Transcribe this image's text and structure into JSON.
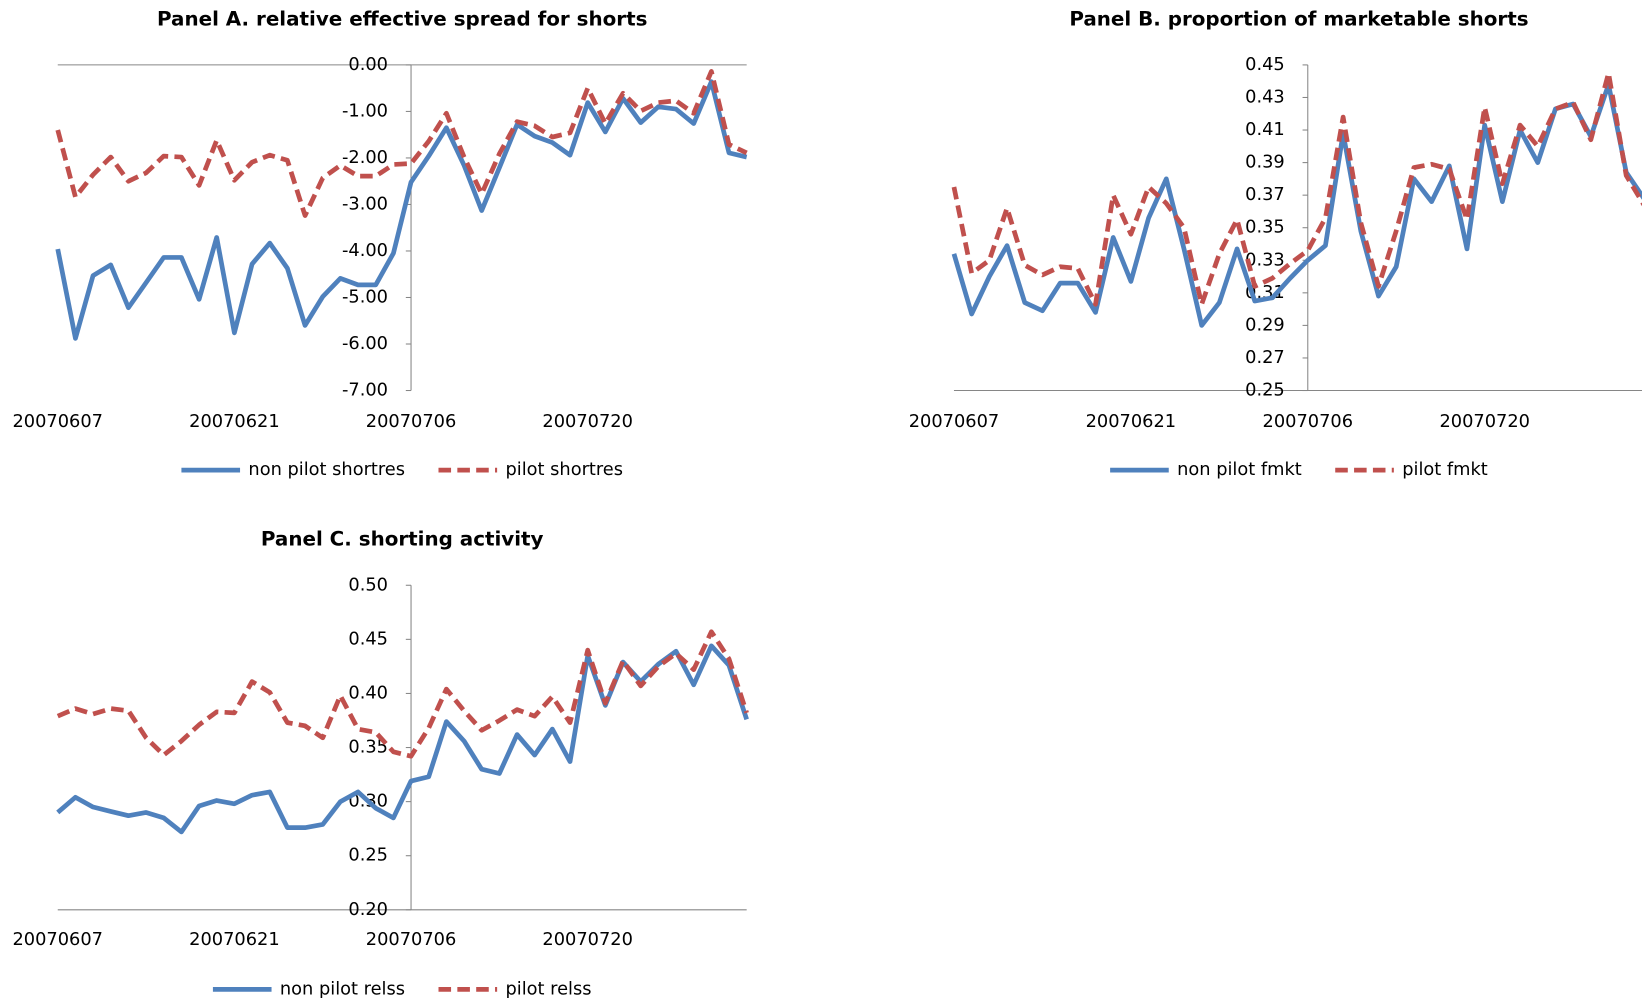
{
  "chart_data": [
    {
      "type": "line",
      "title": "Panel A. relative effective spread for shorts",
      "categories": [
        "20070607",
        null,
        null,
        null,
        null,
        null,
        null,
        null,
        null,
        null,
        "20070621",
        null,
        null,
        null,
        null,
        null,
        null,
        null,
        null,
        null,
        "20070706",
        null,
        null,
        null,
        null,
        null,
        null,
        null,
        null,
        null,
        "20070720",
        null,
        null,
        null,
        null,
        null,
        null,
        null,
        null,
        null
      ],
      "series": [
        {
          "name": "non pilot shortres",
          "color": "#4f81bd",
          "style": "solid",
          "values": [
            -3.96,
            -5.88,
            -4.53,
            -4.3,
            -5.22,
            -4.68,
            -4.14,
            -4.14,
            -5.04,
            -3.71,
            -5.76,
            -4.28,
            -3.83,
            -4.37,
            -5.6,
            -4.98,
            -4.59,
            -4.73,
            -4.73,
            -4.05,
            -2.52,
            -1.96,
            -1.35,
            -2.16,
            -3.13,
            -2.21,
            -1.28,
            -1.53,
            -1.67,
            -1.94,
            -0.81,
            -1.44,
            -0.72,
            -1.24,
            -0.9,
            -0.95,
            -1.26,
            -0.36,
            -1.89,
            -1.98
          ]
        },
        {
          "name": "pilot shortres",
          "color": "#c0504d",
          "style": "dashed",
          "values": [
            -1.4,
            -2.84,
            -2.36,
            -1.98,
            -2.5,
            -2.32,
            -1.96,
            -1.98,
            -2.59,
            -1.62,
            -2.48,
            -2.09,
            -1.94,
            -2.05,
            -3.24,
            -2.43,
            -2.16,
            -2.39,
            -2.39,
            -2.14,
            -2.12,
            -1.64,
            -1.04,
            -1.98,
            -2.77,
            -1.91,
            -1.22,
            -1.31,
            -1.55,
            -1.46,
            -0.5,
            -1.26,
            -0.61,
            -0.99,
            -0.81,
            -0.77,
            -1.04,
            -0.14,
            -1.71,
            -1.89
          ]
        }
      ],
      "ylim": [
        -7,
        0
      ],
      "yticks": [
        {
          "value": -7,
          "label": "-7.00"
        },
        {
          "value": -6,
          "label": "-6.00"
        },
        {
          "value": -5,
          "label": "-5.00"
        },
        {
          "value": -4,
          "label": "-4.00"
        },
        {
          "value": -3,
          "label": "-3.00"
        },
        {
          "value": -2,
          "label": "-2.00"
        },
        {
          "value": -1,
          "label": "-1.00"
        },
        {
          "value": 0,
          "label": "0.00"
        }
      ],
      "legend": "bottom"
    },
    {
      "type": "line",
      "title": "Panel B. proportion of marketable shorts",
      "categories": [
        "20070607",
        null,
        null,
        null,
        null,
        null,
        null,
        null,
        null,
        null,
        "20070621",
        null,
        null,
        null,
        null,
        null,
        null,
        null,
        null,
        null,
        "20070706",
        null,
        null,
        null,
        null,
        null,
        null,
        null,
        null,
        null,
        "20070720",
        null,
        null,
        null,
        null,
        null,
        null,
        null,
        null,
        null
      ],
      "series": [
        {
          "name": "non pilot fmkt",
          "color": "#4f81bd",
          "style": "solid",
          "values": [
            0.334,
            0.297,
            0.32,
            0.339,
            0.304,
            0.299,
            0.316,
            0.316,
            0.298,
            0.344,
            0.317,
            0.356,
            0.38,
            0.337,
            0.29,
            0.304,
            0.337,
            0.305,
            0.307,
            0.319,
            0.33,
            0.339,
            0.408,
            0.348,
            0.308,
            0.326,
            0.38,
            0.366,
            0.388,
            0.337,
            0.413,
            0.366,
            0.41,
            0.39,
            0.423,
            0.426,
            0.406,
            0.438,
            0.384,
            0.368
          ]
        },
        {
          "name": "pilot fmkt",
          "color": "#c0504d",
          "style": "dashed",
          "values": [
            0.375,
            0.322,
            0.33,
            0.362,
            0.327,
            0.321,
            0.326,
            0.325,
            0.303,
            0.37,
            0.346,
            0.375,
            0.365,
            0.35,
            0.303,
            0.334,
            0.355,
            0.314,
            0.319,
            0.328,
            0.336,
            0.356,
            0.418,
            0.353,
            0.314,
            0.348,
            0.387,
            0.389,
            0.386,
            0.355,
            0.424,
            0.377,
            0.413,
            0.4,
            0.423,
            0.427,
            0.404,
            0.445,
            0.382,
            0.364
          ]
        }
      ],
      "ylim": [
        0.25,
        0.45
      ],
      "yticks": [
        0.25,
        0.27,
        0.29,
        0.31,
        0.33,
        0.35,
        0.37,
        0.39,
        0.41,
        0.43,
        0.45
      ],
      "legend": "bottom"
    },
    {
      "type": "line",
      "title": "Panel C. shorting activity",
      "categories": [
        "20070607",
        null,
        null,
        null,
        null,
        null,
        null,
        null,
        null,
        null,
        "20070621",
        null,
        null,
        null,
        null,
        null,
        null,
        null,
        null,
        null,
        "20070706",
        null,
        null,
        null,
        null,
        null,
        null,
        null,
        null,
        null,
        "20070720",
        null,
        null,
        null,
        null,
        null,
        null,
        null,
        null,
        null
      ],
      "series": [
        {
          "name": "non pilot relss",
          "color": "#4f81bd",
          "style": "solid",
          "values": [
            0.29,
            0.304,
            0.295,
            0.291,
            0.287,
            0.29,
            0.285,
            0.272,
            0.296,
            0.301,
            0.298,
            0.306,
            0.309,
            0.276,
            0.276,
            0.279,
            0.3,
            0.309,
            0.294,
            0.285,
            0.319,
            0.323,
            0.374,
            0.356,
            0.33,
            0.326,
            0.362,
            0.343,
            0.367,
            0.337,
            0.435,
            0.389,
            0.429,
            0.411,
            0.427,
            0.439,
            0.408,
            0.444,
            0.426,
            0.376
          ]
        },
        {
          "name": "pilot relss",
          "color": "#c0504d",
          "style": "dashed",
          "values": [
            0.379,
            0.386,
            0.381,
            0.386,
            0.384,
            0.359,
            0.343,
            0.356,
            0.371,
            0.383,
            0.382,
            0.411,
            0.401,
            0.373,
            0.37,
            0.359,
            0.398,
            0.367,
            0.364,
            0.346,
            0.342,
            0.368,
            0.404,
            0.384,
            0.366,
            0.375,
            0.385,
            0.379,
            0.397,
            0.373,
            0.44,
            0.391,
            0.43,
            0.407,
            0.425,
            0.437,
            0.422,
            0.457,
            0.432,
            0.382
          ]
        }
      ],
      "ylim": [
        0.2,
        0.5
      ],
      "yticks": [
        {
          "value": 0.2,
          "label": "0.20"
        },
        0.25,
        {
          "value": 0.3,
          "label": "0.30"
        },
        0.35,
        {
          "value": 0.4,
          "label": "0.40"
        },
        0.45,
        {
          "value": 0.5,
          "label": "0.50"
        }
      ],
      "legend": "bottom"
    }
  ]
}
